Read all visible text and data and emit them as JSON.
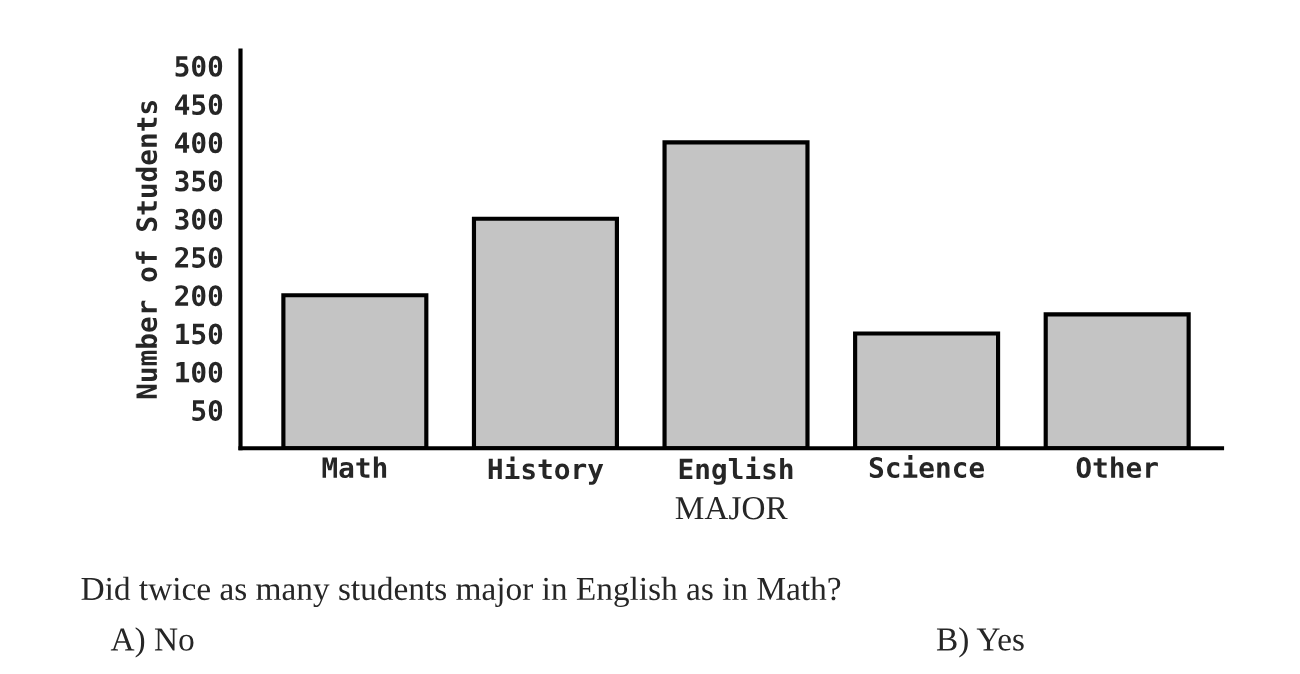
{
  "chart_data": {
    "type": "bar",
    "categories": [
      "Math",
      "History",
      "English",
      "Science",
      "Other"
    ],
    "values": [
      200,
      300,
      400,
      150,
      175
    ],
    "color": "#c4c4c4",
    "xlabel": "MAJOR",
    "ylabel": "Number of Students",
    "ylim": [
      0,
      520
    ],
    "yticks": [
      50,
      100,
      150,
      200,
      250,
      300,
      350,
      400,
      450,
      500
    ],
    "grid": false,
    "annotations": [
      "Did twice as many students major in English as in Math?",
      "A) No",
      "B) Yes"
    ]
  }
}
